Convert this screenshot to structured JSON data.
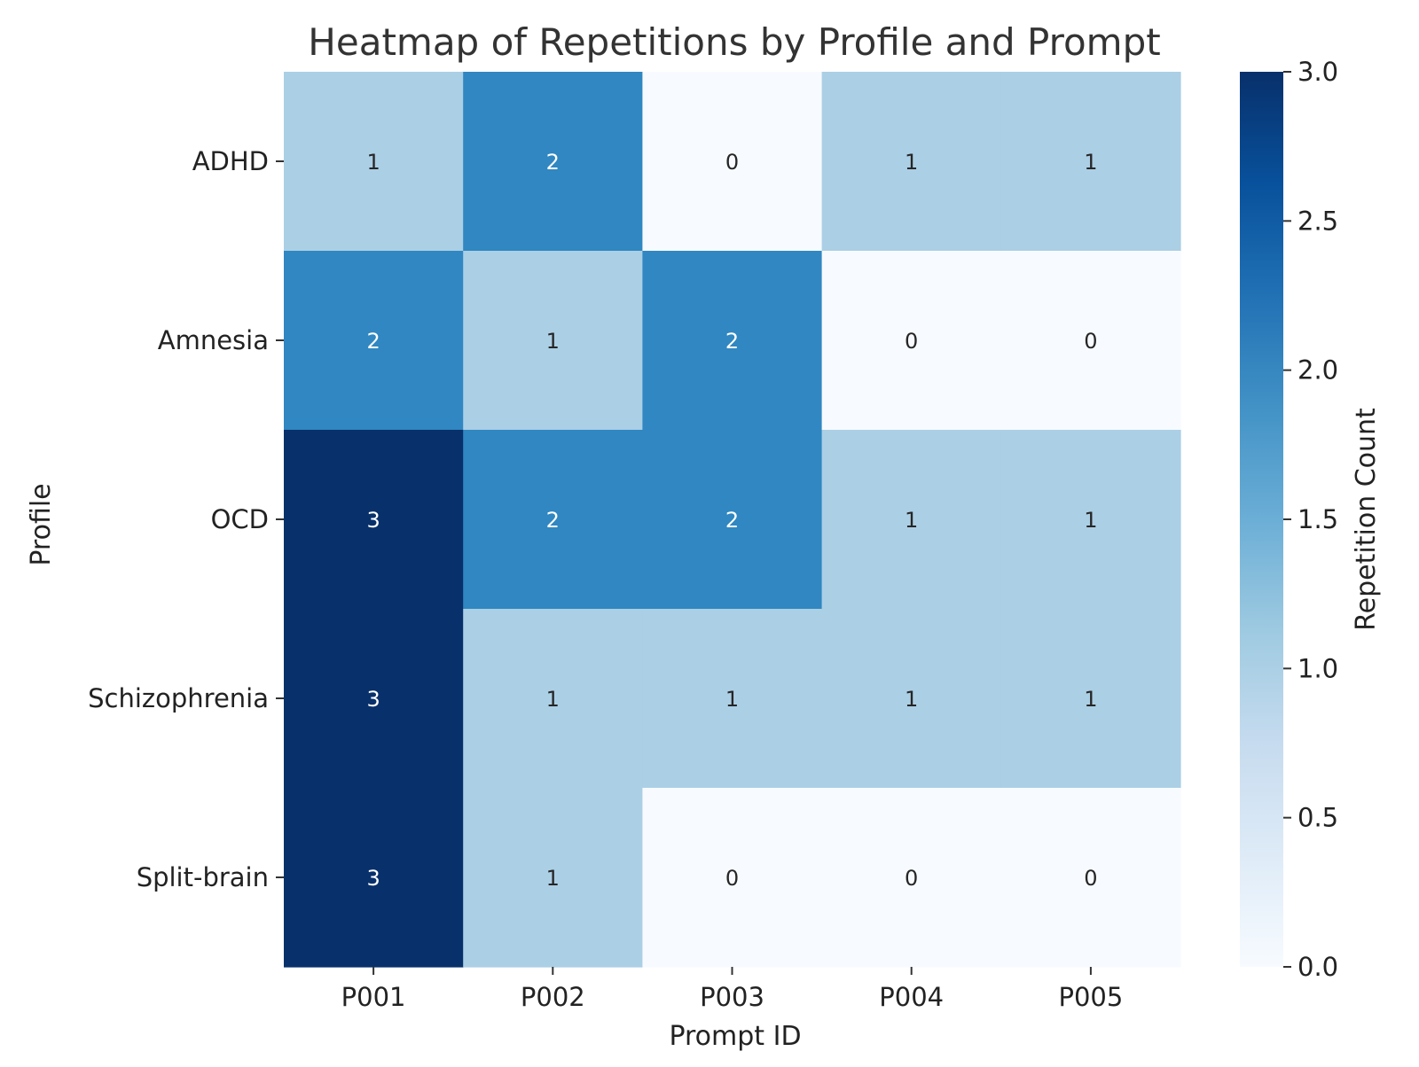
{
  "chart_data": {
    "type": "heatmap",
    "title": "Heatmap of Repetitions by Profile and Prompt",
    "xlabel": "Prompt ID",
    "ylabel": "Profile",
    "x_categories": [
      "P001",
      "P002",
      "P003",
      "P004",
      "P005"
    ],
    "y_categories": [
      "ADHD",
      "Amnesia",
      "OCD",
      "Schizophrenia",
      "Split-brain"
    ],
    "values": [
      [
        1,
        2,
        0,
        1,
        1
      ],
      [
        2,
        1,
        2,
        0,
        0
      ],
      [
        3,
        2,
        2,
        1,
        1
      ],
      [
        3,
        1,
        1,
        1,
        1
      ],
      [
        3,
        1,
        0,
        0,
        0
      ]
    ],
    "colorbar": {
      "label": "Repetition Count",
      "range": [
        0,
        3
      ],
      "ticks": [
        "0.0",
        "0.5",
        "1.0",
        "1.5",
        "2.0",
        "2.5",
        "3.0"
      ],
      "colormap": [
        "#f7fbff",
        "#deebf7",
        "#c6dbef",
        "#9ecae1",
        "#6baed6",
        "#4292c6",
        "#2171b5",
        "#08519c",
        "#08306b"
      ]
    },
    "cell_colors": {
      "0": "#f7fbff",
      "1": "#abcfe5",
      "2": "#3087c1",
      "3": "#08306b"
    },
    "grid": false
  }
}
